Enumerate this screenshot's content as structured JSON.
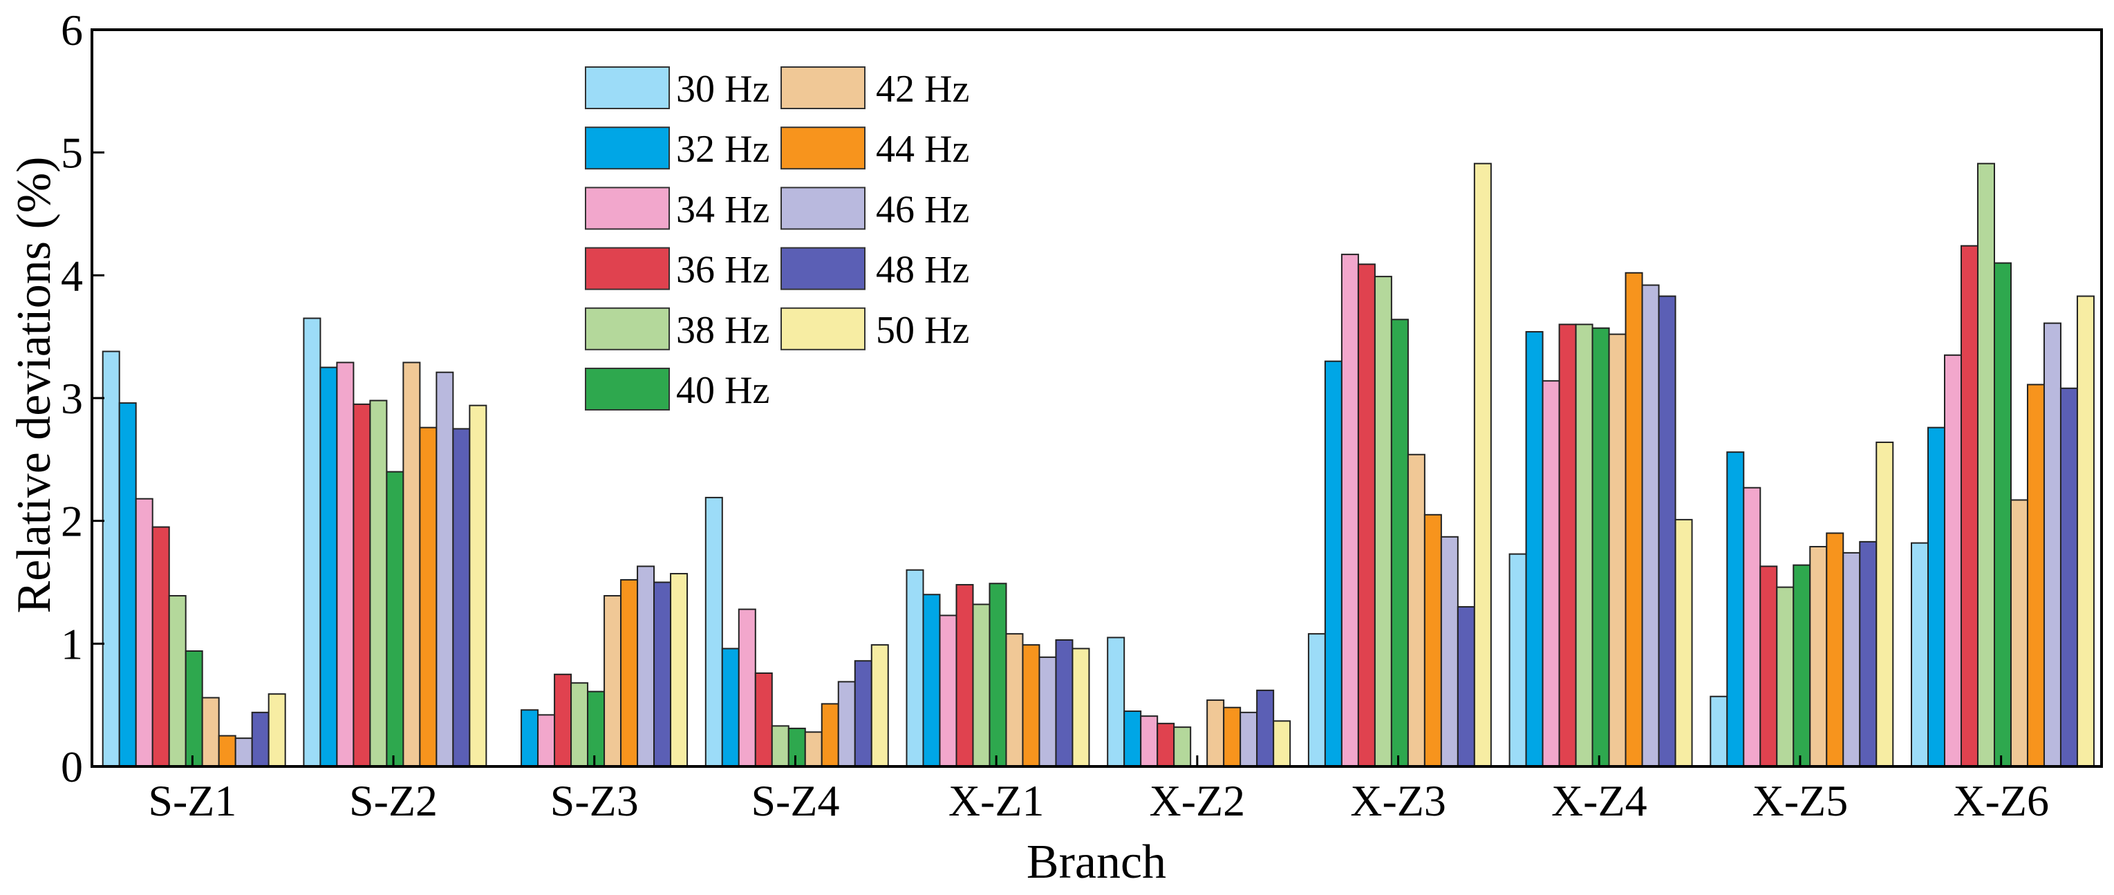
{
  "chart_data": {
    "type": "bar",
    "title": "",
    "xlabel": "Branch",
    "ylabel": "Relative deviations (%)",
    "ylim": [
      0,
      6
    ],
    "yticks": [
      0,
      1,
      2,
      3,
      4,
      5,
      6
    ],
    "grid": false,
    "legend_loc": "upper left",
    "categories": [
      "S-Z1",
      "S-Z2",
      "S-Z3",
      "S-Z4",
      "X-Z1",
      "X-Z2",
      "X-Z3",
      "X-Z4",
      "X-Z5",
      "X-Z6"
    ],
    "series": [
      {
        "name": "30 Hz",
        "color": "#9cdcf8",
        "values": [
          3.38,
          3.65,
          0.0,
          2.19,
          1.6,
          1.05,
          1.08,
          1.73,
          0.57,
          1.82
        ]
      },
      {
        "name": "32 Hz",
        "color": "#00a6e6",
        "values": [
          2.96,
          3.25,
          0.46,
          0.96,
          1.4,
          0.45,
          3.3,
          3.54,
          2.56,
          2.76
        ]
      },
      {
        "name": "34 Hz",
        "color": "#f2a7cc",
        "values": [
          2.18,
          3.29,
          0.42,
          1.28,
          1.23,
          0.41,
          4.17,
          3.14,
          2.27,
          3.35
        ]
      },
      {
        "name": "36 Hz",
        "color": "#e0424f",
        "values": [
          1.95,
          2.95,
          0.75,
          0.76,
          1.48,
          0.35,
          4.09,
          3.6,
          1.63,
          4.24
        ]
      },
      {
        "name": "38 Hz",
        "color": "#b4d89b",
        "values": [
          1.39,
          2.98,
          0.68,
          0.33,
          1.32,
          0.32,
          3.99,
          3.6,
          1.46,
          4.91
        ]
      },
      {
        "name": "40 Hz",
        "color": "#2ea84e",
        "values": [
          0.94,
          2.4,
          0.61,
          0.31,
          1.49,
          0.0,
          3.64,
          3.57,
          1.64,
          4.1
        ]
      },
      {
        "name": "42 Hz",
        "color": "#f0c896",
        "values": [
          0.56,
          3.29,
          1.39,
          0.28,
          1.08,
          0.54,
          2.54,
          3.52,
          1.79,
          2.17
        ]
      },
      {
        "name": "44 Hz",
        "color": "#f7941d",
        "values": [
          0.25,
          2.76,
          1.52,
          0.51,
          0.99,
          0.48,
          2.05,
          4.02,
          1.9,
          3.11
        ]
      },
      {
        "name": "46 Hz",
        "color": "#b9b9de",
        "values": [
          0.23,
          3.21,
          1.63,
          0.69,
          0.89,
          0.44,
          1.87,
          3.92,
          1.74,
          3.61
        ]
      },
      {
        "name": "48 Hz",
        "color": "#5b5fb5",
        "values": [
          0.44,
          2.75,
          1.5,
          0.86,
          1.03,
          0.62,
          1.3,
          3.83,
          1.83,
          3.08
        ]
      },
      {
        "name": "50 Hz",
        "color": "#f7eda3",
        "values": [
          0.59,
          2.94,
          1.57,
          0.99,
          0.96,
          0.37,
          4.91,
          2.01,
          2.64,
          3.83
        ]
      }
    ]
  }
}
